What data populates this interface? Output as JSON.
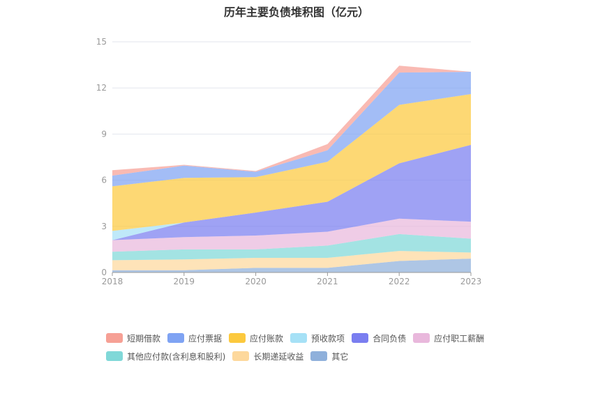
{
  "chart_data": {
    "type": "area",
    "title": "历年主要负债堆积图（亿元）",
    "x": [
      "2018",
      "2019",
      "2020",
      "2021",
      "2022",
      "2023"
    ],
    "ylim": [
      0,
      15
    ],
    "yticks": [
      0,
      3,
      6,
      9,
      12,
      15
    ],
    "grid": true,
    "legend_position": "bottom",
    "series": [
      {
        "name": "其它",
        "color": "#8fb0db",
        "values": [
          0.15,
          0.15,
          0.3,
          0.3,
          0.75,
          0.9
        ]
      },
      {
        "name": "长期递延收益",
        "color": "#fdd89c",
        "values": [
          0.65,
          0.7,
          0.65,
          0.65,
          0.65,
          0.4
        ]
      },
      {
        "name": "其他应付款(含利息和股利)",
        "color": "#80d8d8",
        "values": [
          0.55,
          0.65,
          0.55,
          0.8,
          1.1,
          0.9
        ]
      },
      {
        "name": "应付职工薪酬",
        "color": "#e9b8dc",
        "values": [
          0.75,
          0.8,
          0.9,
          0.9,
          1.0,
          1.1
        ]
      },
      {
        "name": "合同负债",
        "color": "#7a7ef0",
        "values": [
          0.0,
          0.95,
          1.5,
          1.95,
          3.6,
          5.0
        ]
      },
      {
        "name": "预收款项",
        "color": "#a6e1f6",
        "values": [
          0.6,
          0.0,
          0.0,
          0.0,
          0.0,
          0.0
        ]
      },
      {
        "name": "应付账款",
        "color": "#fcc93e",
        "values": [
          2.9,
          2.9,
          2.3,
          2.6,
          3.8,
          3.3
        ]
      },
      {
        "name": "应付票据",
        "color": "#7fa3f3",
        "values": [
          0.7,
          0.8,
          0.35,
          0.75,
          2.1,
          1.45
        ]
      },
      {
        "name": "短期借款",
        "color": "#f6a095",
        "values": [
          0.35,
          0.05,
          0.05,
          0.4,
          0.45,
          0.0
        ]
      }
    ]
  },
  "legend": {
    "items": [
      "短期借款",
      "应付票据",
      "应付账款",
      "预收款项",
      "合同负债",
      "应付职工薪酬",
      "其他应付款(含利息和股利)",
      "长期递延收益",
      "其它"
    ],
    "colors": [
      "#f6a095",
      "#7fa3f3",
      "#fcc93e",
      "#a6e1f6",
      "#7a7ef0",
      "#e9b8dc",
      "#80d8d8",
      "#fdd89c",
      "#8fb0db"
    ]
  }
}
